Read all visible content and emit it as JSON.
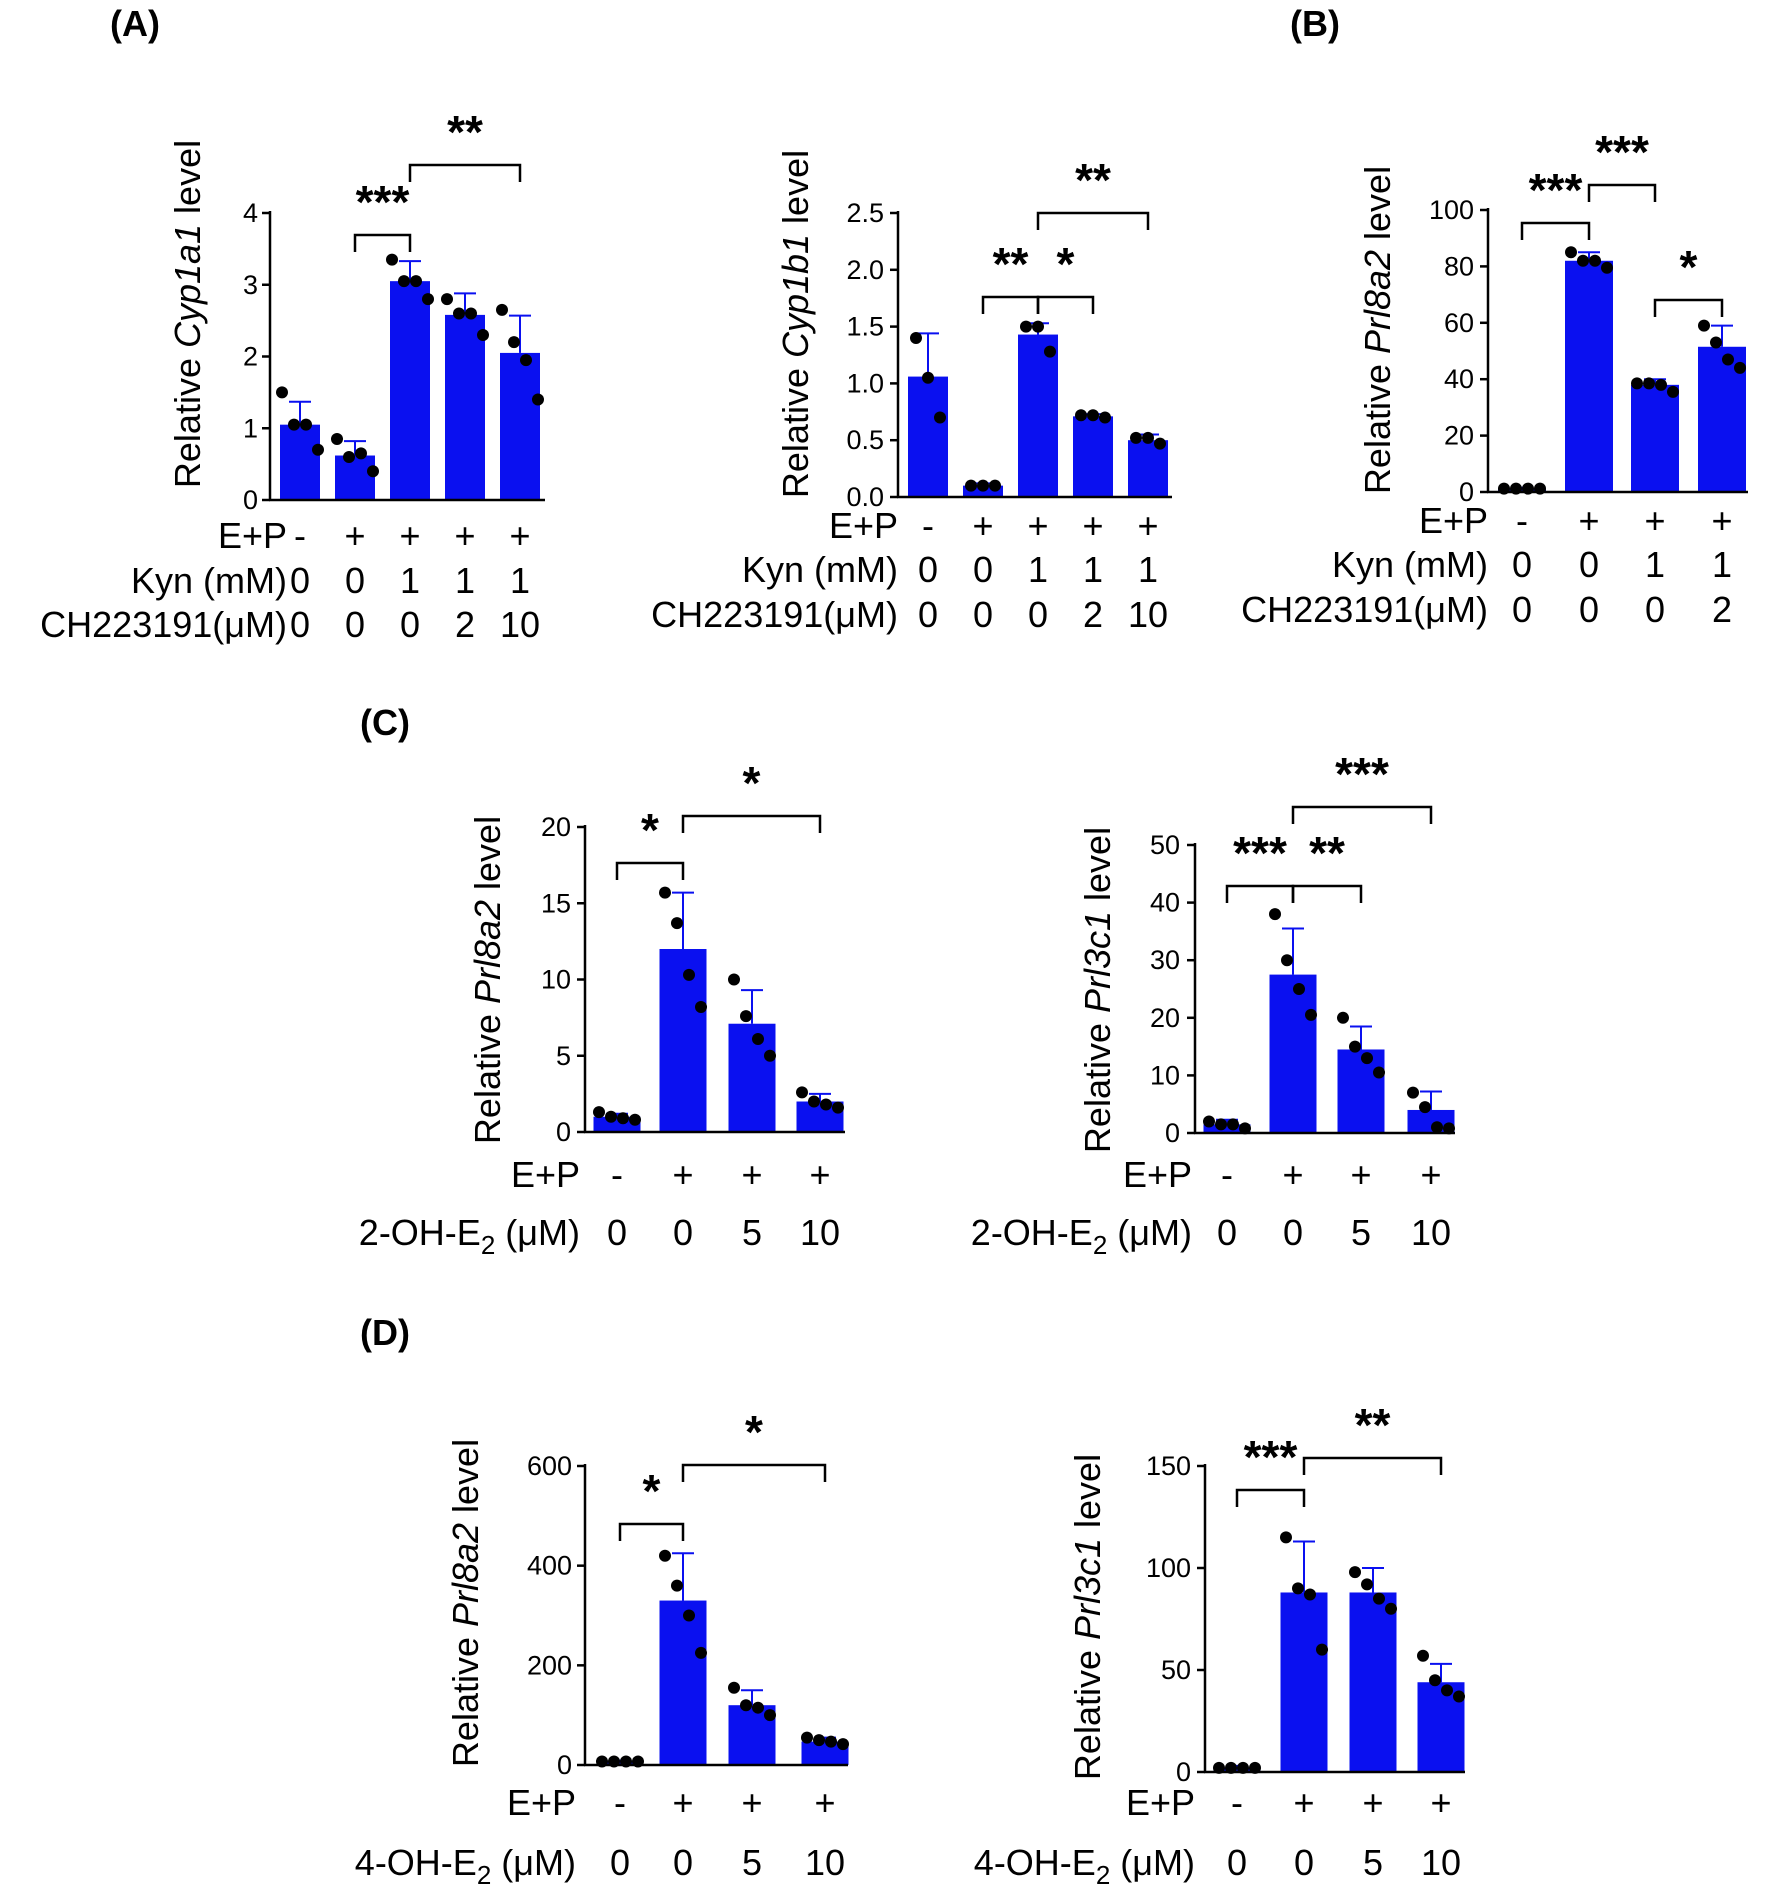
{
  "panel_labels": {
    "A": "(A)",
    "B": "(B)",
    "C": "(C)",
    "D": "(D)"
  },
  "colors": {
    "bar": "#0a10f0",
    "point": "#000000",
    "axis": "#000000"
  },
  "chart_data": [
    {
      "id": "cyp1a1",
      "type": "bar",
      "ylabel": {
        "pre": "Relative ",
        "gene": "Cyp1a1",
        "post": " level"
      },
      "ylim": [
        0,
        4
      ],
      "yticks": [
        "0",
        "1",
        "2",
        "3",
        "4"
      ],
      "values": [
        1.05,
        0.62,
        3.05,
        2.58,
        2.05
      ],
      "errors": [
        0.32,
        0.2,
        0.28,
        0.3,
        0.52
      ],
      "points": [
        [
          1.5,
          1.05,
          1.05,
          0.7
        ],
        [
          0.85,
          0.6,
          0.65,
          0.4
        ],
        [
          3.35,
          3.05,
          3.05,
          2.8
        ],
        [
          2.8,
          2.6,
          2.6,
          2.3
        ],
        [
          2.65,
          2.2,
          1.95,
          1.4
        ]
      ],
      "conditions": [
        {
          "label": "E+P",
          "values": [
            "-",
            "+",
            "+",
            "+",
            "+"
          ]
        },
        {
          "label": "Kyn (mM)",
          "values": [
            "0",
            "0",
            "1",
            "1",
            "1"
          ]
        },
        {
          "label": "CH223191(μM)",
          "values": [
            "0",
            "0",
            "0",
            "2",
            "10"
          ]
        }
      ],
      "significance": [
        {
          "from": 1,
          "to": 2,
          "label": "***"
        },
        {
          "from": 2,
          "to": 4,
          "label": "**"
        }
      ]
    },
    {
      "id": "cyp1b1",
      "type": "bar",
      "ylabel": {
        "pre": "Relative ",
        "gene": "Cyp1b1",
        "post": " level"
      },
      "ylim": [
        0,
        2.5
      ],
      "yticks": [
        "0.0",
        "0.5",
        "1.0",
        "1.5",
        "2.0",
        "2.5"
      ],
      "values": [
        1.06,
        0.1,
        1.43,
        0.71,
        0.5
      ],
      "errors": [
        0.38,
        0.02,
        0.1,
        0.02,
        0.05
      ],
      "points": [
        [
          1.4,
          1.05,
          0.7
        ],
        [
          0.1,
          0.1,
          0.1
        ],
        [
          1.5,
          1.5,
          1.28
        ],
        [
          0.72,
          0.72,
          0.7
        ],
        [
          0.52,
          0.52,
          0.47
        ]
      ],
      "conditions": [
        {
          "label": "E+P",
          "values": [
            "-",
            "+",
            "+",
            "+",
            "+"
          ]
        },
        {
          "label": "Kyn (mM)",
          "values": [
            "0",
            "0",
            "1",
            "1",
            "1"
          ]
        },
        {
          "label": "CH223191(μM)",
          "values": [
            "0",
            "0",
            "0",
            "2",
            "10"
          ]
        }
      ],
      "significance": [
        {
          "from": 1,
          "to": 2,
          "label": "**"
        },
        {
          "from": 2,
          "to": 3,
          "label": "*"
        },
        {
          "from": 2,
          "to": 4,
          "label": "**"
        }
      ]
    },
    {
      "id": "prl8a2_kyn",
      "type": "bar",
      "ylabel": {
        "pre": "Relative ",
        "gene": "Prl8a2",
        "post": " level"
      },
      "ylim": [
        0,
        100
      ],
      "yticks": [
        "0",
        "20",
        "40",
        "60",
        "80",
        "100"
      ],
      "values": [
        1.2,
        82,
        38,
        51.5
      ],
      "errors": [
        0.3,
        3,
        2,
        7.5
      ],
      "points": [
        [
          1.2,
          1.2,
          1.2,
          1.2
        ],
        [
          85,
          82,
          82,
          79.5
        ],
        [
          38.5,
          38.5,
          38,
          35.5
        ],
        [
          59,
          53,
          47,
          44
        ]
      ],
      "conditions": [
        {
          "label": "E+P",
          "values": [
            "-",
            "+",
            "+",
            "+"
          ]
        },
        {
          "label": "Kyn (mM)",
          "values": [
            "0",
            "0",
            "1",
            "1"
          ]
        },
        {
          "label": "CH223191(μM)",
          "values": [
            "0",
            "0",
            "0",
            "2"
          ]
        }
      ],
      "significance": [
        {
          "from": 0,
          "to": 1,
          "label": "***"
        },
        {
          "from": 1,
          "to": 2,
          "label": "***"
        },
        {
          "from": 2,
          "to": 3,
          "label": "*"
        }
      ]
    },
    {
      "id": "prl8a2_2oh",
      "type": "bar",
      "ylabel": {
        "pre": "Relative ",
        "gene": "Prl8a2",
        "post": " level"
      },
      "ylim": [
        0,
        20
      ],
      "yticks": [
        "0",
        "5",
        "10",
        "15",
        "20"
      ],
      "values": [
        1.0,
        12.0,
        7.1,
        2.0
      ],
      "errors": [
        0.2,
        3.7,
        2.2,
        0.5
      ],
      "points": [
        [
          1.3,
          1.0,
          0.9,
          0.8
        ],
        [
          15.7,
          13.7,
          10.3,
          8.2
        ],
        [
          10.0,
          7.6,
          6.1,
          5.0
        ],
        [
          2.6,
          2.0,
          1.8,
          1.6
        ]
      ],
      "conditions": [
        {
          "label": "E+P",
          "values": [
            "-",
            "+",
            "+",
            "+"
          ]
        },
        {
          "label": "2-OH-E",
          "sub": "2",
          "suffix": " (μM)",
          "values": [
            "0",
            "0",
            "5",
            "10"
          ]
        }
      ],
      "significance": [
        {
          "from": 0,
          "to": 1,
          "label": "*"
        },
        {
          "from": 1,
          "to": 3,
          "label": "*"
        }
      ]
    },
    {
      "id": "prl3c1_2oh",
      "type": "bar",
      "ylabel": {
        "pre": "Relative ",
        "gene": "Prl3c1",
        "post": " level"
      },
      "ylim": [
        0,
        50
      ],
      "yticks": [
        "0",
        "10",
        "20",
        "30",
        "40",
        "50"
      ],
      "values": [
        1.5,
        27.5,
        14.5,
        4.0
      ],
      "errors": [
        0.8,
        8.0,
        4.0,
        3.2
      ],
      "points": [
        [
          2.0,
          1.5,
          1.5,
          0.8
        ],
        [
          38.0,
          30.0,
          25.0,
          20.5
        ],
        [
          20.0,
          15.0,
          13.0,
          10.5
        ],
        [
          7.0,
          4.5,
          1.0,
          0.8
        ]
      ],
      "conditions": [
        {
          "label": "E+P",
          "values": [
            "-",
            "+",
            "+",
            "+"
          ]
        },
        {
          "label": "2-OH-E",
          "sub": "2",
          "suffix": " (μM)",
          "values": [
            "0",
            "0",
            "5",
            "10"
          ]
        }
      ],
      "significance": [
        {
          "from": 0,
          "to": 1,
          "label": "***"
        },
        {
          "from": 1,
          "to": 2,
          "label": "**"
        },
        {
          "from": 1,
          "to": 3,
          "label": "***"
        }
      ]
    },
    {
      "id": "prl8a2_4oh",
      "type": "bar",
      "ylabel": {
        "pre": "Relative ",
        "gene": "Prl8a2",
        "post": " level"
      },
      "ylim": [
        0,
        600
      ],
      "yticks": [
        "0",
        "200",
        "400",
        "600"
      ],
      "values": [
        7,
        330,
        120,
        47
      ],
      "errors": [
        2,
        95,
        30,
        8
      ],
      "points": [
        [
          7,
          7,
          7,
          7
        ],
        [
          420,
          360,
          300,
          225
        ],
        [
          155,
          120,
          115,
          100
        ],
        [
          55,
          50,
          47,
          42
        ]
      ],
      "conditions": [
        {
          "label": "E+P",
          "values": [
            "-",
            "+",
            "+",
            "+"
          ]
        },
        {
          "label": "4-OH-E",
          "sub": "2",
          "suffix": " (μM)",
          "values": [
            "0",
            "0",
            "5",
            "10"
          ]
        }
      ],
      "significance": [
        {
          "from": 0,
          "to": 1,
          "label": "*"
        },
        {
          "from": 1,
          "to": 3,
          "label": "*"
        }
      ]
    },
    {
      "id": "prl3c1_4oh",
      "type": "bar",
      "ylabel": {
        "pre": "Relative ",
        "gene": "Prl3c1",
        "post": " level"
      },
      "ylim": [
        0,
        150
      ],
      "yticks": [
        "0",
        "50",
        "100",
        "150"
      ],
      "values": [
        2,
        88,
        88,
        44
      ],
      "errors": [
        1,
        25,
        12,
        9
      ],
      "points": [
        [
          2,
          2,
          2,
          2
        ],
        [
          115,
          90,
          87,
          60
        ],
        [
          98,
          92,
          85,
          80
        ],
        [
          57,
          45,
          40,
          37
        ]
      ],
      "conditions": [
        {
          "label": "E+P",
          "values": [
            "-",
            "+",
            "+",
            "+"
          ]
        },
        {
          "label": "4-OH-E",
          "sub": "2",
          "suffix": " (μM)",
          "values": [
            "0",
            "0",
            "5",
            "10"
          ]
        }
      ],
      "significance": [
        {
          "from": 0,
          "to": 1,
          "label": "***"
        },
        {
          "from": 1,
          "to": 3,
          "label": "**"
        }
      ]
    }
  ]
}
